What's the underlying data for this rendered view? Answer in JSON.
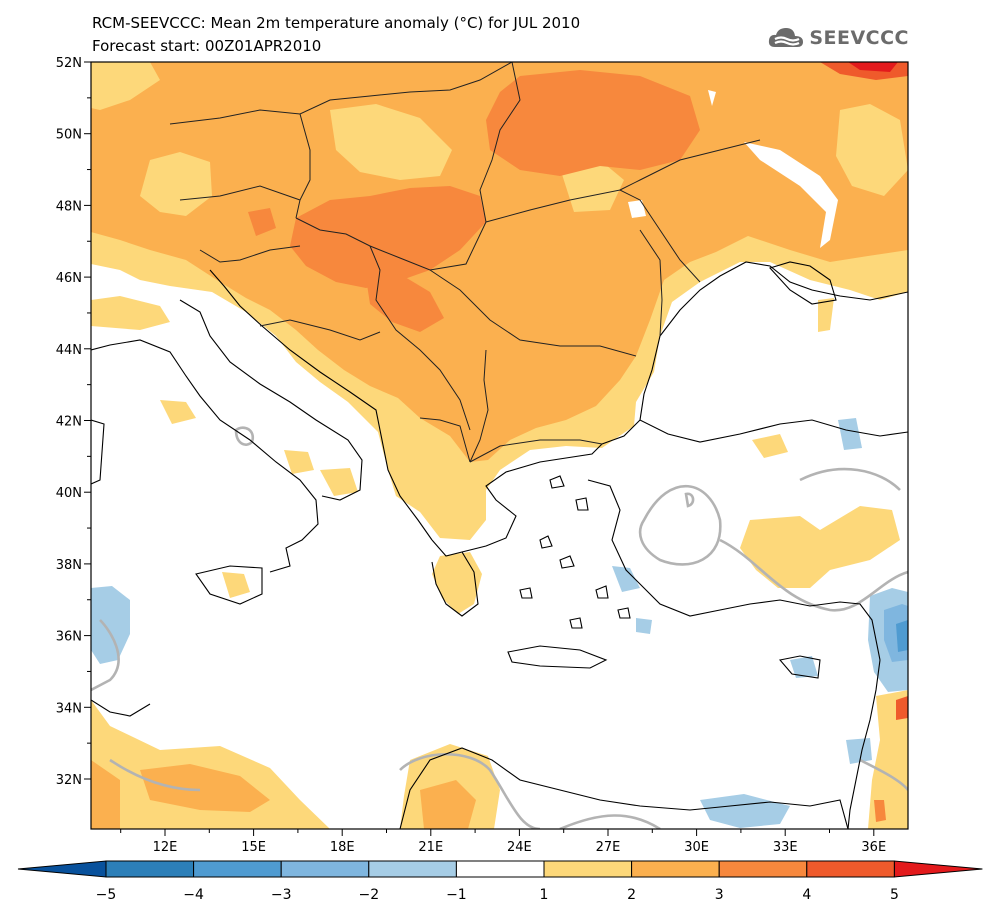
{
  "title": {
    "line1": "RCM-SEEVCCC: Mean 2m temperature anomaly (°C) for JUL 2010",
    "line2": "Forecast start: 00Z01APR2010"
  },
  "logo": {
    "text": "SEEVCCC",
    "icon": "cloud-icon"
  },
  "map": {
    "lat_labels": [
      "52N",
      "50N",
      "48N",
      "46N",
      "44N",
      "42N",
      "40N",
      "38N",
      "36N",
      "34N",
      "32N"
    ],
    "lon_labels": [
      "12E",
      "15E",
      "18E",
      "21E",
      "24E",
      "27E",
      "30E",
      "33E",
      "36E"
    ]
  },
  "colorbar": {
    "labels": [
      "−5",
      "−4",
      "−3",
      "−2",
      "−1",
      "1",
      "2",
      "3",
      "4",
      "5"
    ],
    "colors": [
      "#08519c",
      "#2c7fb8",
      "#4f9bd1",
      "#7fb6df",
      "#a6cde6",
      "#ffffff",
      "#fdd87a",
      "#fbb04f",
      "#f7883d",
      "#ef5a2b",
      "#e31a1c"
    ]
  }
}
